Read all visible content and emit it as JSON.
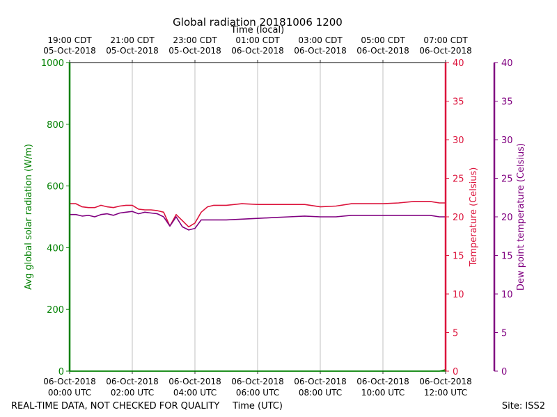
{
  "chart_data": {
    "type": "line",
    "title": "Global radiation 20181006 1200",
    "top_axis_label": "Time (local)",
    "xlabel": "Time (UTC)",
    "footer_left": "REAL-TIME DATA, NOT CHECKED FOR QUALITY",
    "footer_right": "Site: ISS2",
    "x_range_hours": [
      0,
      12
    ],
    "bottom_ticks": [
      {
        "hour": 0,
        "line1": "06-Oct-2018",
        "line2": "00:00 UTC"
      },
      {
        "hour": 2,
        "line1": "06-Oct-2018",
        "line2": "02:00 UTC"
      },
      {
        "hour": 4,
        "line1": "06-Oct-2018",
        "line2": "04:00 UTC"
      },
      {
        "hour": 6,
        "line1": "06-Oct-2018",
        "line2": "06:00 UTC"
      },
      {
        "hour": 8,
        "line1": "06-Oct-2018",
        "line2": "08:00 UTC"
      },
      {
        "hour": 10,
        "line1": "06-Oct-2018",
        "line2": "10:00 UTC"
      },
      {
        "hour": 12,
        "line1": "06-Oct-2018",
        "line2": "12:00 UTC"
      }
    ],
    "top_ticks": [
      {
        "hour": 0,
        "line1": "19:00 CDT",
        "line2": "05-Oct-2018"
      },
      {
        "hour": 2,
        "line1": "21:00 CDT",
        "line2": "05-Oct-2018"
      },
      {
        "hour": 4,
        "line1": "23:00 CDT",
        "line2": "05-Oct-2018"
      },
      {
        "hour": 6,
        "line1": "01:00 CDT",
        "line2": "06-Oct-2018"
      },
      {
        "hour": 8,
        "line1": "03:00 CDT",
        "line2": "06-Oct-2018"
      },
      {
        "hour": 10,
        "line1": "05:00 CDT",
        "line2": "06-Oct-2018"
      },
      {
        "hour": 12,
        "line1": "07:00 CDT",
        "line2": "06-Oct-2018"
      }
    ],
    "axes": {
      "radiation": {
        "label": "Avg global solar radiation (W/m)",
        "ylim": [
          0,
          1000
        ],
        "ticks": [
          0,
          200,
          400,
          600,
          800,
          1000
        ],
        "color": "#008000"
      },
      "temperature": {
        "label": "Temperature (Celsius)",
        "ylim": [
          0,
          40
        ],
        "ticks": [
          0,
          5,
          10,
          15,
          20,
          25,
          30,
          35,
          40
        ],
        "color": "#dc143c"
      },
      "dewpoint": {
        "label": "Dew point temperature (Celsius)",
        "ylim": [
          0,
          40
        ],
        "ticks": [
          0,
          5,
          10,
          15,
          20,
          25,
          30,
          35,
          40
        ],
        "color": "#800080"
      }
    },
    "series": [
      {
        "name": "Avg global solar radiation",
        "axis": "radiation",
        "color": "#008000",
        "x": [
          0,
          11.8,
          11.9,
          12.0
        ],
        "y": [
          0,
          0,
          2,
          5
        ]
      },
      {
        "name": "Temperature",
        "axis": "temperature",
        "color": "#dc143c",
        "x": [
          0,
          0.2,
          0.4,
          0.6,
          0.8,
          1.0,
          1.2,
          1.4,
          1.6,
          1.8,
          2.0,
          2.2,
          2.4,
          2.6,
          2.8,
          3.0,
          3.2,
          3.4,
          3.6,
          3.8,
          4.0,
          4.2,
          4.4,
          4.6,
          4.8,
          5.0,
          5.5,
          6.0,
          6.5,
          7.0,
          7.5,
          8.0,
          8.5,
          9.0,
          9.5,
          10.0,
          10.5,
          11.0,
          11.5,
          11.8,
          12.0
        ],
        "y": [
          21.7,
          21.7,
          21.3,
          21.2,
          21.2,
          21.5,
          21.3,
          21.2,
          21.4,
          21.5,
          21.5,
          21.0,
          20.9,
          20.9,
          20.8,
          20.6,
          18.8,
          20.3,
          19.5,
          18.7,
          19.2,
          20.6,
          21.3,
          21.5,
          21.5,
          21.5,
          21.7,
          21.6,
          21.6,
          21.6,
          21.6,
          21.3,
          21.4,
          21.7,
          21.7,
          21.7,
          21.8,
          22.0,
          22.0,
          21.8,
          21.8
        ]
      },
      {
        "name": "Dew point temperature",
        "axis": "dewpoint",
        "color": "#800080",
        "x": [
          0,
          0.2,
          0.4,
          0.6,
          0.8,
          1.0,
          1.2,
          1.4,
          1.6,
          1.8,
          2.0,
          2.2,
          2.4,
          2.6,
          2.8,
          3.0,
          3.2,
          3.4,
          3.6,
          3.8,
          4.0,
          4.2,
          4.4,
          4.6,
          4.8,
          5.0,
          5.5,
          6.0,
          6.5,
          7.0,
          7.5,
          8.0,
          8.5,
          9.0,
          9.5,
          10.0,
          10.5,
          11.0,
          11.5,
          11.8,
          12.0
        ],
        "y": [
          20.3,
          20.3,
          20.1,
          20.2,
          20.0,
          20.3,
          20.4,
          20.2,
          20.5,
          20.6,
          20.7,
          20.4,
          20.6,
          20.5,
          20.4,
          20.0,
          18.8,
          20.0,
          18.7,
          18.3,
          18.5,
          19.6,
          19.6,
          19.6,
          19.6,
          19.6,
          19.7,
          19.8,
          19.9,
          20.0,
          20.1,
          20.0,
          20.0,
          20.2,
          20.2,
          20.2,
          20.2,
          20.2,
          20.2,
          20.0,
          20.0
        ]
      }
    ]
  }
}
